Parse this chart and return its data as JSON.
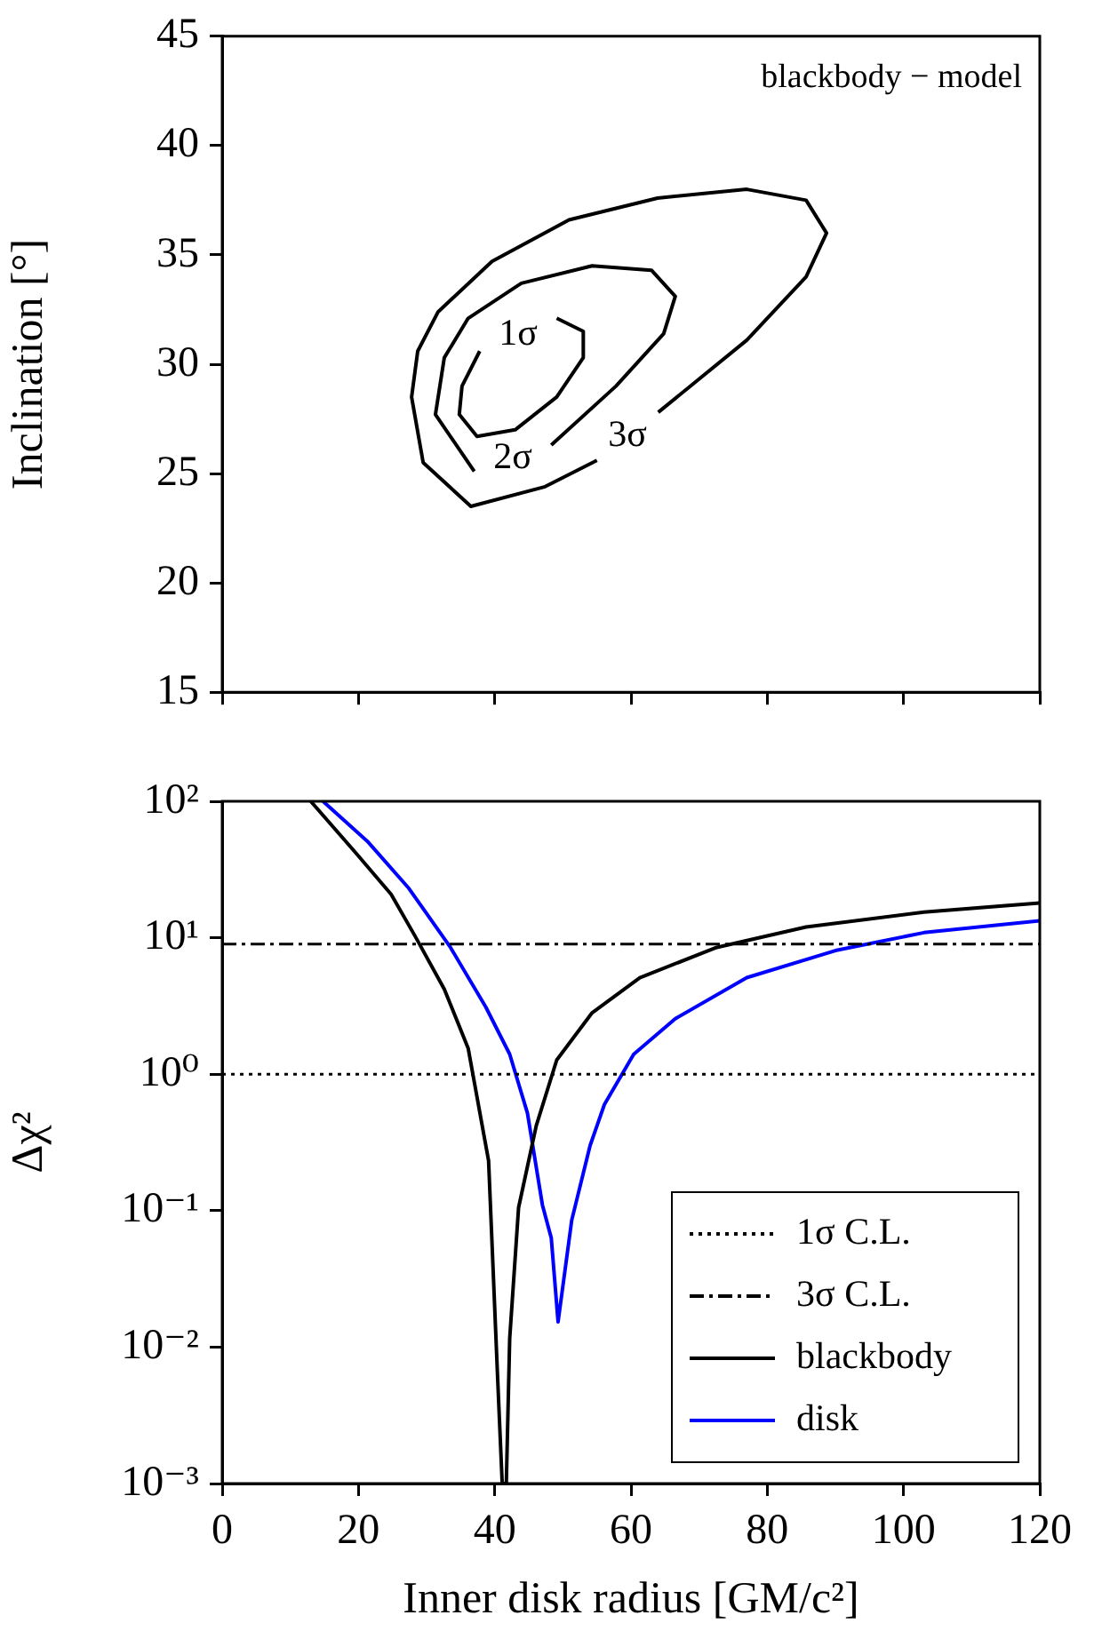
{
  "chart_data": [
    {
      "type": "line",
      "ylabel": "Inclination [°]",
      "xlim": [
        0,
        120
      ],
      "ylim": [
        15,
        45
      ],
      "xticks": [
        0,
        20,
        40,
        60,
        80,
        100,
        120
      ],
      "yticks": [
        15,
        20,
        25,
        30,
        35,
        40,
        45
      ],
      "tick_labels": "y",
      "grid": false,
      "marker": "none",
      "line_style": "solid",
      "annotations": [
        "blackbody − model"
      ],
      "series": [
        {
          "name": "3σ",
          "color": "#000000",
          "x": [
            64.0,
            77.0,
            85.7,
            88.7,
            85.7,
            77.0,
            63.9,
            50.9,
            39.6,
            31.7,
            28.7,
            27.8,
            29.5,
            36.5,
            47.4,
            55.0
          ],
          "values": [
            27.8,
            31.1,
            34.0,
            36.0,
            37.5,
            38.0,
            37.6,
            36.6,
            34.7,
            32.4,
            30.6,
            28.5,
            25.5,
            23.5,
            24.4,
            25.6
          ]
        },
        {
          "name": "2σ",
          "color": "#000000",
          "x": [
            48.3,
            57.8,
            64.8,
            66.5,
            63.0,
            54.3,
            43.9,
            36.1,
            32.6,
            31.3,
            37.0
          ],
          "values": [
            26.3,
            29.0,
            31.4,
            33.1,
            34.3,
            34.5,
            33.7,
            32.1,
            30.3,
            27.7,
            25.1
          ]
        },
        {
          "name": "1σ",
          "color": "#000000",
          "x": [
            37.8,
            35.2,
            34.8,
            37.4,
            43.0,
            49.1,
            53.0,
            53.0,
            49.1
          ],
          "values": [
            30.6,
            29.0,
            27.7,
            26.7,
            27.0,
            28.5,
            30.3,
            31.5,
            32.1
          ]
        }
      ]
    },
    {
      "type": "line",
      "xlabel": "Inner disk radius [GM/c²]",
      "ylabel": "Δχ²",
      "log": "y",
      "xlim": [
        0,
        120
      ],
      "ylim": [
        0.001,
        100
      ],
      "xticks": [
        0,
        20,
        40,
        60,
        80,
        100,
        120
      ],
      "yticks": [
        {
          "value": 0.001,
          "label": "10⁻³"
        },
        {
          "value": 0.01,
          "label": "10⁻²"
        },
        {
          "value": 0.1,
          "label": "10⁻¹"
        },
        {
          "value": 1,
          "label": "10⁰"
        },
        {
          "value": 10,
          "label": "10¹"
        },
        {
          "value": 100,
          "label": "10²"
        }
      ],
      "grid": false,
      "legend": "bottom right",
      "marker": "none",
      "line_style": "solid",
      "ref_lines": [
        {
          "axis": "y",
          "value": 1,
          "label": "1σ C.L.",
          "color": "#000000",
          "line_style": "dotted"
        },
        {
          "axis": "y",
          "value": 9,
          "label": "3σ C.L.",
          "color": "#000000",
          "line_style": "dashdot"
        }
      ],
      "series": [
        {
          "name": "blackbody",
          "color": "#000000",
          "x": [
            13.0,
            19.6,
            24.8,
            28.3,
            32.6,
            36.1,
            39.1,
            40.4,
            41.1,
            41.7,
            42.2,
            43.5,
            46.1,
            49.1,
            54.3,
            61.3,
            72.6,
            85.7,
            103.0,
            120
          ],
          "values": [
            100,
            41.9,
            20.8,
            10.3,
            4.2,
            1.55,
            0.232,
            0.0064,
            0.001,
            0.001,
            0.0116,
            0.105,
            0.42,
            1.27,
            2.82,
            5.1,
            8.5,
            12.0,
            15.4,
            18.0
          ]
        },
        {
          "name": "disk",
          "color": "#0000ff",
          "x": [
            14.8,
            21.3,
            27.4,
            33.5,
            38.7,
            42.2,
            44.8,
            47.0,
            48.3,
            49.3,
            51.3,
            54.0,
            56.1,
            60.4,
            66.5,
            77.0,
            90.0,
            103.0,
            120
          ],
          "values": [
            100,
            51,
            23,
            8.5,
            3.1,
            1.4,
            0.52,
            0.11,
            0.063,
            0.0153,
            0.085,
            0.3,
            0.6,
            1.4,
            2.55,
            5.1,
            8.05,
            10.9,
            13.3
          ]
        }
      ]
    }
  ]
}
